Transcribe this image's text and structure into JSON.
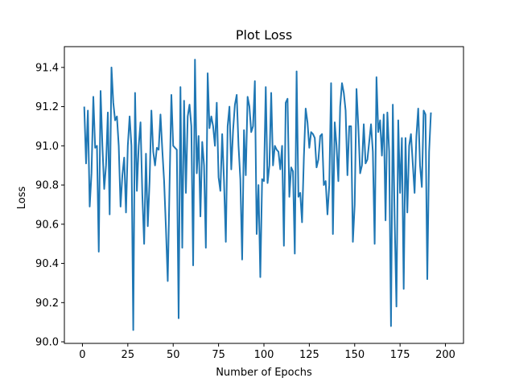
{
  "chart_data": {
    "type": "line",
    "title": "Plot Loss",
    "xlabel": "Number of Epochs",
    "ylabel": "Loss",
    "xlim": [
      -9.95,
      209.95
    ],
    "ylim": [
      89.992,
      91.506
    ],
    "xticks": [
      0,
      25,
      50,
      75,
      100,
      125,
      150,
      175,
      200
    ],
    "yticks": [
      90.0,
      90.2,
      90.4,
      90.6,
      90.8,
      91.0,
      91.2,
      91.4
    ],
    "ytick_labels": [
      "90.0",
      "90.2",
      "90.4",
      "90.6",
      "90.8",
      "91.0",
      "91.2",
      "91.4"
    ],
    "grid": false,
    "colors": {
      "line": "#1f77b4"
    },
    "series": [
      {
        "x_start": 1,
        "x_step": 1,
        "values": [
          91.2,
          90.91,
          91.18,
          90.69,
          90.86,
          91.25,
          90.99,
          91.0,
          90.46,
          91.28,
          91.0,
          90.78,
          90.9,
          91.17,
          90.65,
          91.4,
          91.22,
          91.13,
          91.15,
          91.0,
          90.69,
          90.85,
          90.94,
          90.66,
          91.0,
          91.15,
          91.0,
          90.06,
          91.27,
          90.77,
          91.0,
          91.12,
          90.75,
          90.5,
          90.96,
          90.59,
          90.82,
          91.18,
          90.97,
          90.9,
          90.99,
          90.98,
          91.16,
          90.98,
          90.82,
          90.58,
          90.31,
          90.8,
          91.26,
          91.0,
          90.99,
          90.98,
          90.12,
          91.3,
          90.48,
          91.23,
          90.76,
          91.15,
          91.21,
          91.1,
          90.39,
          91.44,
          90.86,
          91.05,
          90.64,
          91.02,
          90.9,
          90.48,
          91.37,
          91.09,
          91.15,
          91.1,
          91.0,
          91.22,
          90.84,
          90.77,
          91.06,
          90.82,
          90.51,
          91.1,
          91.2,
          90.88,
          91.08,
          91.21,
          91.26,
          91.0,
          90.83,
          90.42,
          91.08,
          90.85,
          91.25,
          91.2,
          91.07,
          91.1,
          91.33,
          90.55,
          90.8,
          90.33,
          90.83,
          90.82,
          91.3,
          90.81,
          90.9,
          91.27,
          90.9,
          91.0,
          90.98,
          90.97,
          90.88,
          91.0,
          90.49,
          91.22,
          91.24,
          90.74,
          90.89,
          90.87,
          90.45,
          91.38,
          90.74,
          90.76,
          90.61,
          90.94,
          91.19,
          91.12,
          90.99,
          91.07,
          91.06,
          91.04,
          90.89,
          90.93,
          91.05,
          91.06,
          90.8,
          90.82,
          90.65,
          90.8,
          91.32,
          90.55,
          91.12,
          91.0,
          90.82,
          91.2,
          91.32,
          91.27,
          91.18,
          90.85,
          91.1,
          91.1,
          90.51,
          90.7,
          91.29,
          91.1,
          90.86,
          90.9,
          91.11,
          90.91,
          90.93,
          91.02,
          91.11,
          90.97,
          90.5,
          91.35,
          91.07,
          91.13,
          90.95,
          91.16,
          90.62,
          91.17,
          90.97,
          90.08,
          91.21,
          90.63,
          90.18,
          91.13,
          90.76,
          91.04,
          90.27,
          91.04,
          90.66,
          91.0,
          91.06,
          90.91,
          90.76,
          91.05,
          91.19,
          90.9,
          90.79,
          91.18,
          91.16,
          90.32,
          90.97,
          91.17
        ]
      }
    ]
  }
}
